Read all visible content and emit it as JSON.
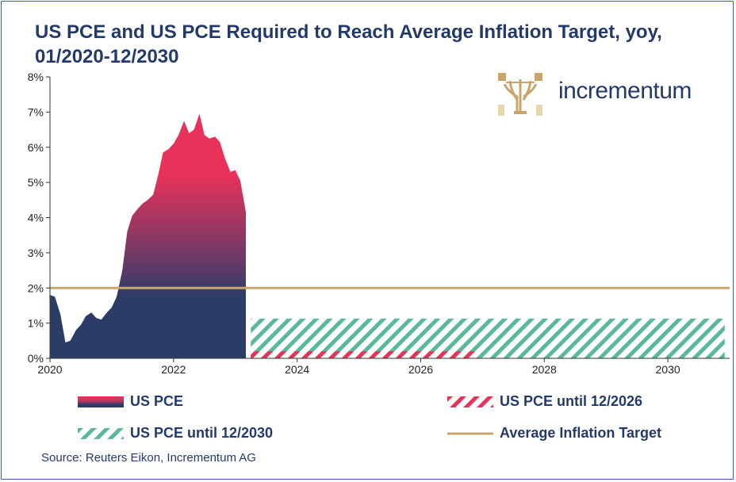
{
  "title": "US PCE and US PCE Required to Reach Average Inflation Target, yoy, 01/2020-12/2030",
  "logo": {
    "text": "incrementum"
  },
  "source": "Source: Reuters Eikon, Incrementum AG",
  "colors": {
    "pce_top": "#e8325a",
    "pce_bottom": "#2b3c66",
    "hatch_2026": "#e4345c",
    "hatch_2030": "#5ab99a",
    "target": "#c8a56a",
    "text": "#233a6b"
  },
  "chart_data": {
    "type": "area",
    "title": "US PCE and US PCE Required to Reach Average Inflation Target, yoy, 01/2020-12/2030",
    "xlabel": "",
    "ylabel": "",
    "xlim": [
      2020.0,
      2031.0
    ],
    "ylim": [
      0,
      8
    ],
    "x_ticks": [
      2020,
      2022,
      2024,
      2026,
      2028,
      2030
    ],
    "x_tick_labels": [
      "2020",
      "2022",
      "2024",
      "2026",
      "2028",
      "2030"
    ],
    "y_ticks": [
      0,
      1,
      2,
      3,
      4,
      5,
      6,
      7,
      8
    ],
    "y_tick_labels": [
      "0%",
      "1%",
      "2%",
      "3%",
      "4%",
      "5%",
      "6%",
      "7%",
      "8%"
    ],
    "grid": false,
    "legend_position": "bottom",
    "series": [
      {
        "name": "US PCE",
        "kind": "area",
        "x": [
          2020.0,
          2020.08,
          2020.17,
          2020.25,
          2020.33,
          2020.42,
          2020.5,
          2020.58,
          2020.67,
          2020.75,
          2020.83,
          2020.92,
          2021.0,
          2021.08,
          2021.17,
          2021.25,
          2021.33,
          2021.42,
          2021.5,
          2021.58,
          2021.67,
          2021.75,
          2021.83,
          2021.92,
          2022.0,
          2022.08,
          2022.17,
          2022.25,
          2022.33,
          2022.42,
          2022.5,
          2022.58,
          2022.67,
          2022.75,
          2022.83,
          2022.92,
          2023.0,
          2023.08,
          2023.17
        ],
        "values": [
          1.8,
          1.75,
          1.25,
          0.45,
          0.5,
          0.8,
          0.95,
          1.2,
          1.3,
          1.15,
          1.1,
          1.3,
          1.45,
          1.75,
          2.5,
          3.6,
          4.05,
          4.25,
          4.4,
          4.5,
          4.65,
          5.2,
          5.85,
          5.95,
          6.1,
          6.35,
          6.75,
          6.4,
          6.5,
          6.95,
          6.35,
          6.25,
          6.3,
          6.15,
          5.7,
          5.3,
          5.35,
          5.05,
          4.15
        ]
      },
      {
        "name": "US PCE until 12/2026",
        "kind": "hatched-area",
        "x": [
          2023.25,
          2026.92
        ],
        "values": [
          0.2,
          0.2
        ]
      },
      {
        "name": "US PCE until 12/2030",
        "kind": "hatched-area",
        "x": [
          2023.25,
          2030.92
        ],
        "values": [
          1.13,
          1.13
        ]
      },
      {
        "name": "Average Inflation Target",
        "kind": "line",
        "x": [
          2020.0,
          2031.0
        ],
        "values": [
          2.0,
          2.0
        ]
      }
    ]
  },
  "legend": [
    {
      "label": "US PCE",
      "swatch": "pce"
    },
    {
      "label": "US PCE until 12/2026",
      "swatch": "hatch-red"
    },
    {
      "label": "US PCE until 12/2030",
      "swatch": "hatch-green"
    },
    {
      "label": "Average Inflation Target",
      "swatch": "line"
    }
  ]
}
